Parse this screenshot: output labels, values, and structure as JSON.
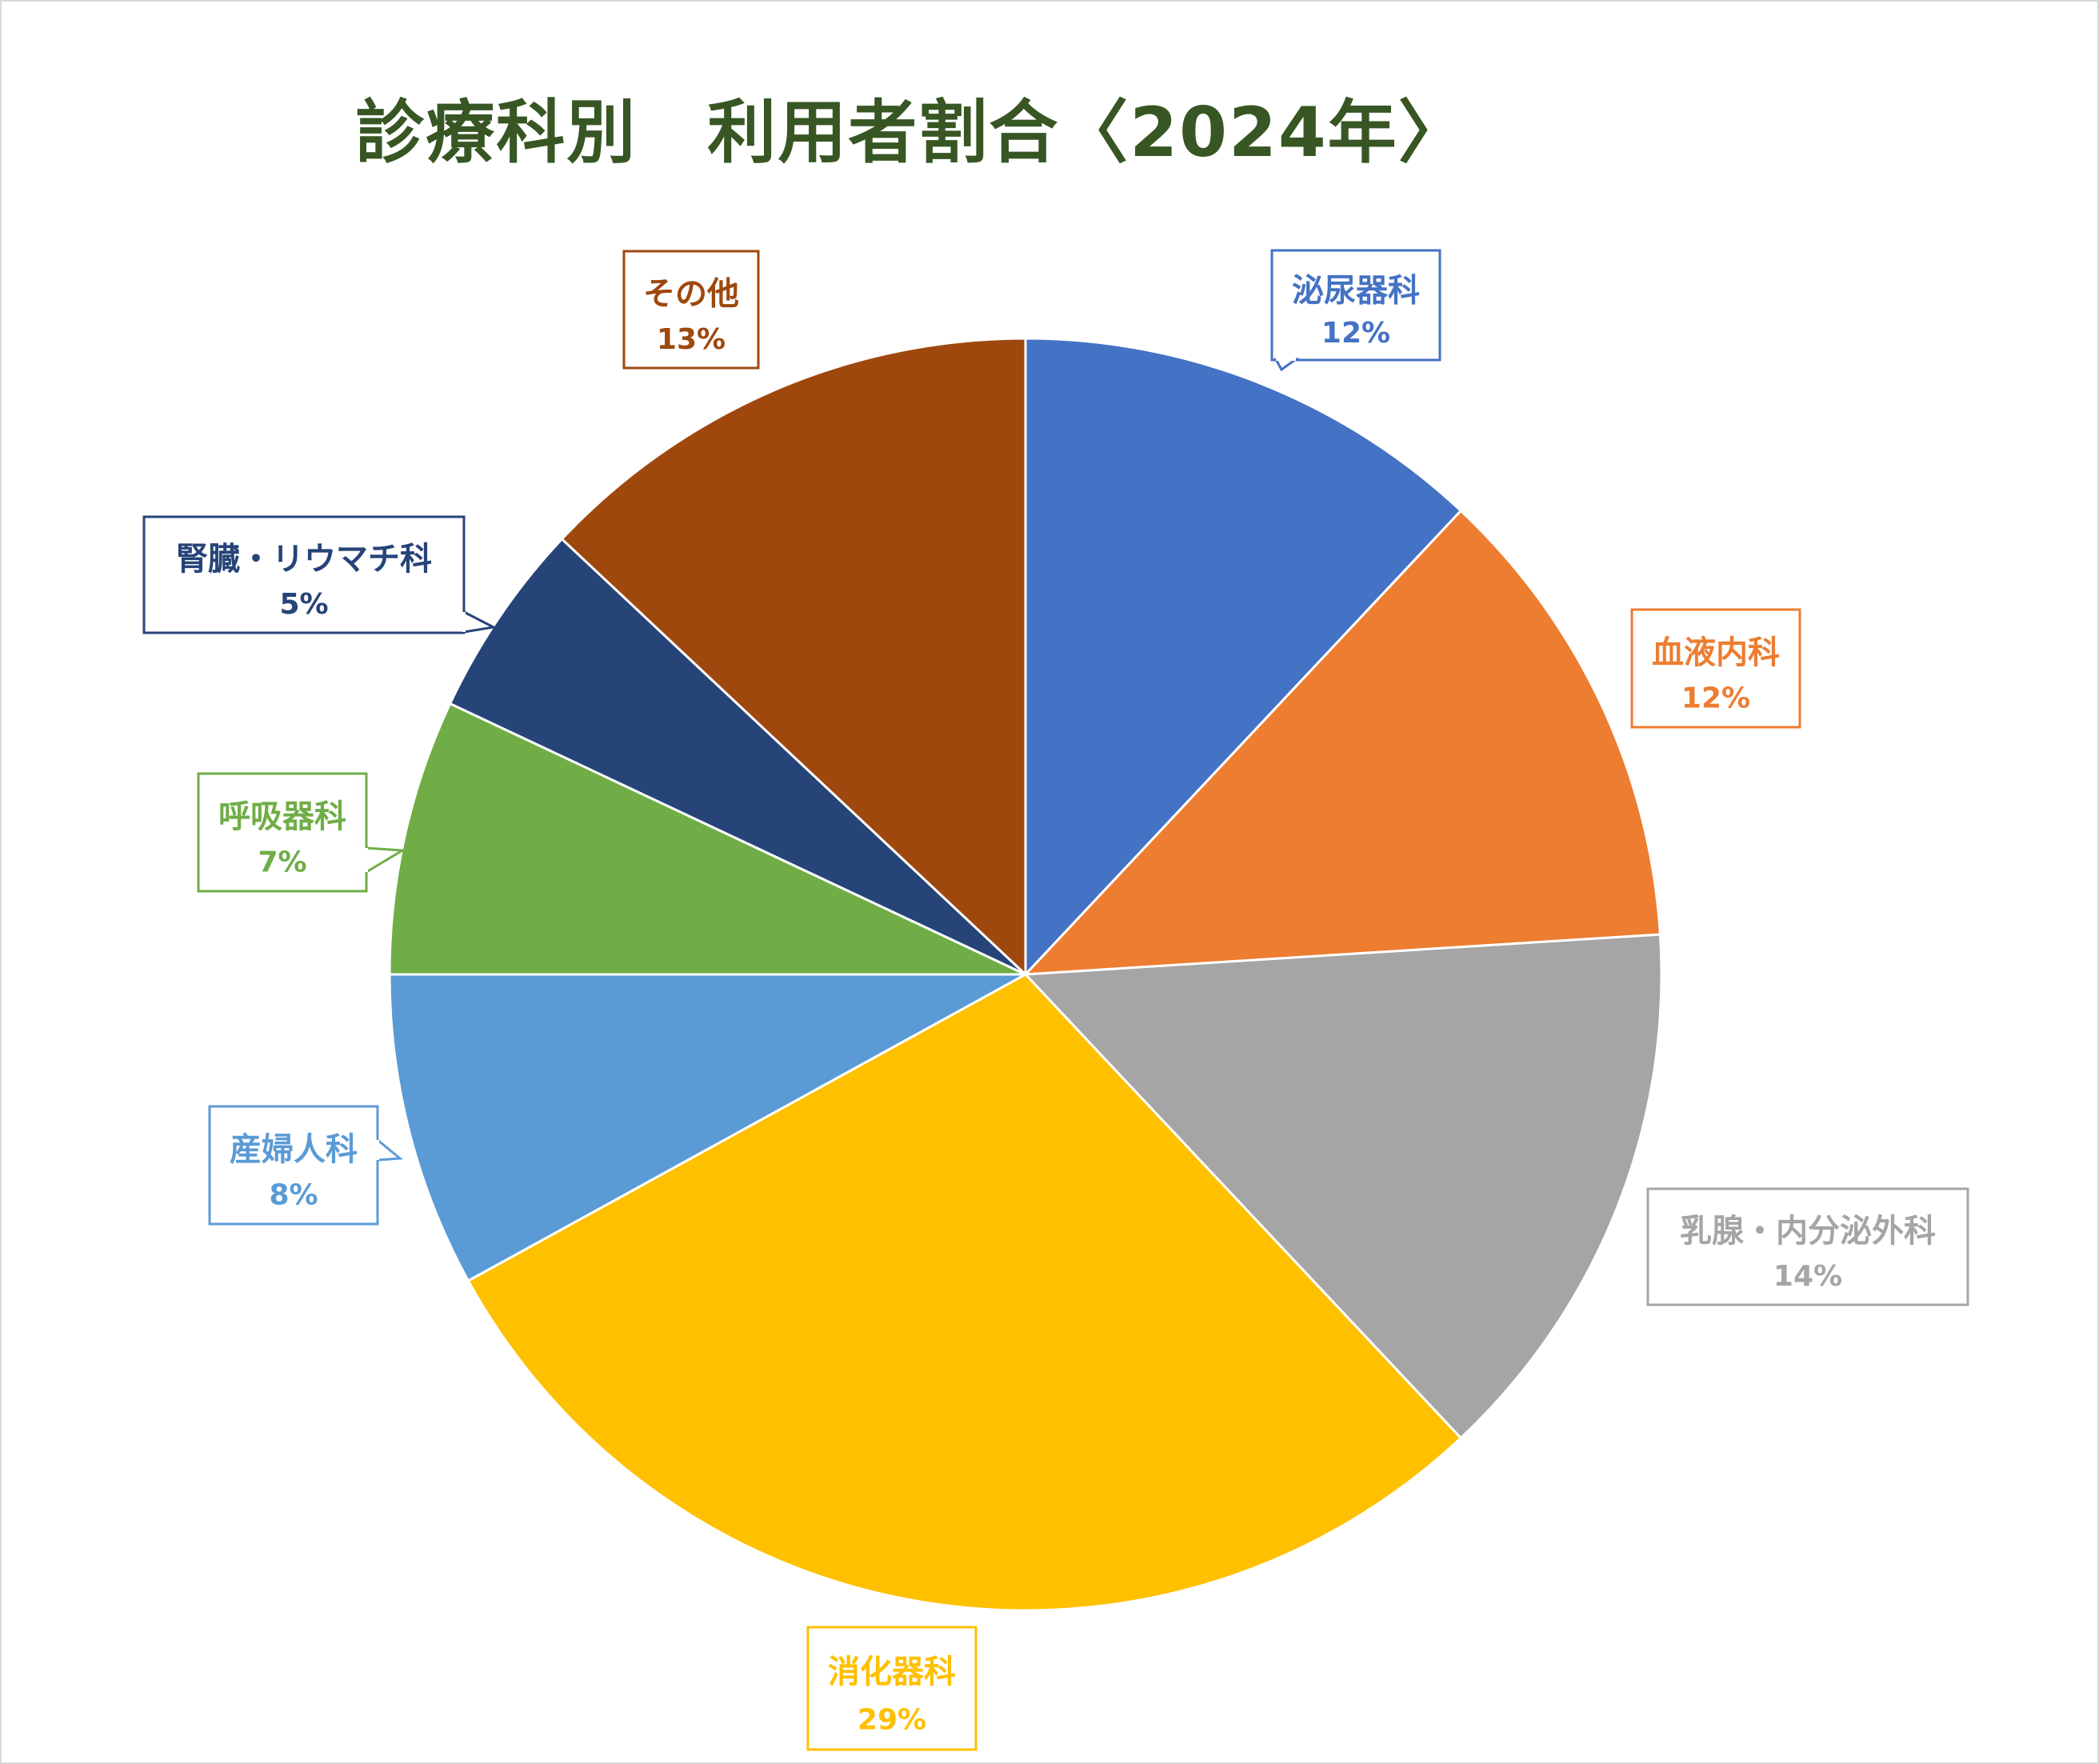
{
  "chart_data": {
    "type": "pie",
    "title": "診療科別　利用者割合〈2024年〉",
    "title_color": "#375623",
    "slices": [
      {
        "label": "泌尿器科",
        "value": 12,
        "display": "12%",
        "color": "#4472C4"
      },
      {
        "label": "血液内科",
        "value": 12,
        "display": "12%",
        "color": "#ED7D31"
      },
      {
        "label": "乳腺・内分泌外科",
        "value": 14,
        "display": "14%",
        "color": "#A5A5A5"
      },
      {
        "label": "消化器科",
        "value": 29,
        "display": "29%",
        "color": "#FFC000"
      },
      {
        "label": "産婦人科",
        "value": 8,
        "display": "8%",
        "color": "#5B9BD5"
      },
      {
        "label": "呼吸器科",
        "value": 7,
        "display": "7%",
        "color": "#70AD47"
      },
      {
        "label": "腎臓・リウマチ科",
        "value": 5,
        "display": "5%",
        "color": "#264478"
      },
      {
        "label": "その他",
        "value": 13,
        "display": "13%",
        "color": "#9E480E"
      }
    ],
    "start_angle_deg": 0,
    "direction": "clockwise",
    "legend": "none",
    "data_labels": "category name and percentage in bordered callouts"
  }
}
